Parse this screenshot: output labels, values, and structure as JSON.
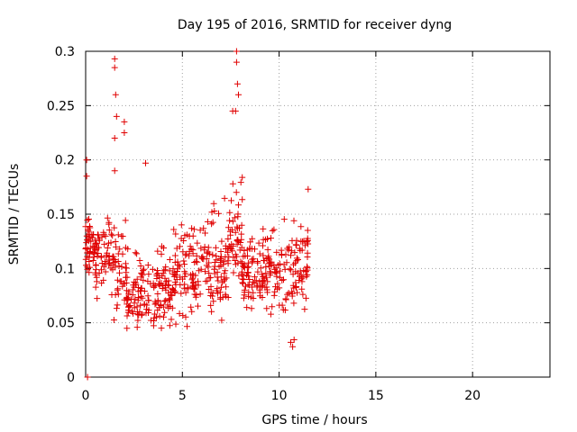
{
  "chart_data": {
    "type": "scatter",
    "title": "Day 195 of 2016, SRMTID for receiver dyng",
    "xlabel": "GPS time / hours",
    "ylabel": "SRMTID / TECUs",
    "xlim": [
      0,
      24
    ],
    "ylim": [
      0,
      0.3
    ],
    "xticks": [
      0,
      5,
      10,
      15,
      20
    ],
    "xtick_labels": [
      "0",
      "5",
      "10",
      "15",
      "20"
    ],
    "yticks": [
      0,
      0.05,
      0.1,
      0.15,
      0.2,
      0.25,
      0.3
    ],
    "ytick_labels": [
      "0",
      "0.05",
      "0.1",
      "0.15",
      "0.2",
      "0.25",
      "0.3"
    ],
    "grid": true,
    "marker": "+",
    "color": "#e00000",
    "series": [
      {
        "name": "SRMTID",
        "x_range": [
          0,
          11.5
        ],
        "notable_points": [
          {
            "x": 0.05,
            "y": 0.2
          },
          {
            "x": 0.05,
            "y": 0.185
          },
          {
            "x": 0.1,
            "y": 0.0
          },
          {
            "x": 1.5,
            "y": 0.293
          },
          {
            "x": 1.5,
            "y": 0.285
          },
          {
            "x": 1.55,
            "y": 0.26
          },
          {
            "x": 1.6,
            "y": 0.24
          },
          {
            "x": 1.5,
            "y": 0.22
          },
          {
            "x": 1.5,
            "y": 0.19
          },
          {
            "x": 2.0,
            "y": 0.235
          },
          {
            "x": 2.0,
            "y": 0.225
          },
          {
            "x": 3.1,
            "y": 0.197
          },
          {
            "x": 7.8,
            "y": 0.3
          },
          {
            "x": 7.8,
            "y": 0.29
          },
          {
            "x": 7.85,
            "y": 0.27
          },
          {
            "x": 7.9,
            "y": 0.26
          },
          {
            "x": 7.75,
            "y": 0.245
          },
          {
            "x": 7.6,
            "y": 0.245
          },
          {
            "x": 11.5,
            "y": 0.173
          },
          {
            "x": 10.7,
            "y": 0.028
          },
          {
            "x": 10.6,
            "y": 0.032
          }
        ],
        "segments": [
          {
            "x": [
              0.0,
              0.5
            ],
            "y": [
              0.08,
              0.16
            ],
            "n": 45
          },
          {
            "x": [
              0.5,
              1.4
            ],
            "y": [
              0.06,
              0.16
            ],
            "n": 60
          },
          {
            "x": [
              1.4,
              2.1
            ],
            "y": [
              0.04,
              0.17
            ],
            "n": 40
          },
          {
            "x": [
              2.1,
              3.0
            ],
            "y": [
              0.03,
              0.13
            ],
            "n": 65
          },
          {
            "x": [
              3.0,
              4.5
            ],
            "y": [
              0.03,
              0.13
            ],
            "n": 90
          },
          {
            "x": [
              4.5,
              6.0
            ],
            "y": [
              0.04,
              0.16
            ],
            "n": 95
          },
          {
            "x": [
              6.0,
              7.4
            ],
            "y": [
              0.035,
              0.17
            ],
            "n": 90
          },
          {
            "x": [
              7.4,
              8.1
            ],
            "y": [
              0.06,
              0.2
            ],
            "n": 50
          },
          {
            "x": [
              8.1,
              9.0
            ],
            "y": [
              0.05,
              0.15
            ],
            "n": 60
          },
          {
            "x": [
              9.0,
              10.0
            ],
            "y": [
              0.04,
              0.15
            ],
            "n": 65
          },
          {
            "x": [
              10.0,
              11.5
            ],
            "y": [
              0.03,
              0.16
            ],
            "n": 90
          }
        ]
      }
    ]
  }
}
